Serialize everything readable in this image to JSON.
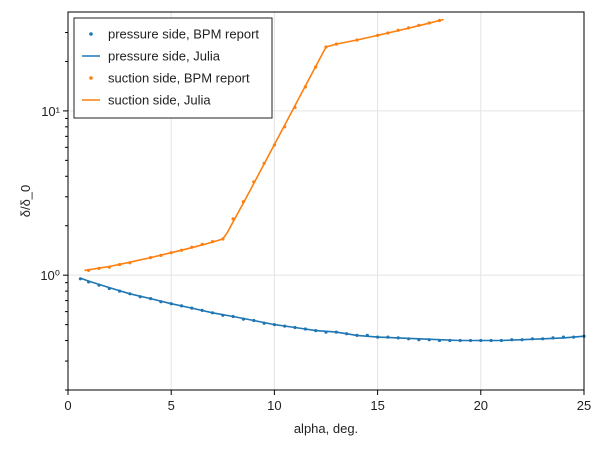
{
  "chart_data": {
    "type": "line",
    "title": "",
    "xlabel": "alpha, deg.",
    "ylabel": "δ/δ_0",
    "xlim": [
      0,
      25
    ],
    "ylim": [
      0.2,
      40
    ],
    "yscale": "log",
    "grid": true,
    "legend_position": "top-left",
    "x_ticks": [
      0,
      5,
      10,
      15,
      20,
      25
    ],
    "x_tick_labels": [
      "0",
      "5",
      "10",
      "15",
      "20",
      "25"
    ],
    "y_ticks": [
      1,
      10
    ],
    "y_tick_labels": [
      "10⁰",
      "10¹"
    ],
    "y_minor_ticks": [
      0.2,
      0.3,
      0.4,
      0.5,
      0.6,
      0.7,
      0.8,
      0.9,
      2,
      3,
      4,
      5,
      6,
      7,
      8,
      9,
      20,
      30
    ],
    "series": [
      {
        "name": "pressure side, BPM report",
        "kind": "scatter",
        "color": "#1f77b4",
        "x": [
          0.6,
          1.0,
          1.5,
          2.0,
          2.5,
          3.0,
          3.5,
          4.0,
          4.5,
          5.0,
          5.5,
          6.0,
          6.5,
          7.0,
          7.5,
          8.0,
          8.5,
          9.0,
          9.5,
          10.0,
          10.5,
          11.0,
          11.5,
          12.0,
          12.5,
          13.0,
          13.5,
          14.0,
          14.5,
          15.0,
          15.5,
          16.0,
          16.5,
          17.0,
          17.5,
          18.0,
          18.5,
          19.0,
          19.5,
          20.0,
          20.5,
          21.0,
          21.5,
          22.0,
          22.5,
          23.0,
          23.5,
          24.0,
          24.5,
          25.0
        ],
        "y": [
          0.95,
          0.91,
          0.87,
          0.83,
          0.8,
          0.77,
          0.74,
          0.72,
          0.69,
          0.67,
          0.65,
          0.63,
          0.61,
          0.59,
          0.57,
          0.56,
          0.54,
          0.53,
          0.51,
          0.5,
          0.49,
          0.48,
          0.47,
          0.46,
          0.45,
          0.45,
          0.44,
          0.43,
          0.43,
          0.42,
          0.42,
          0.415,
          0.41,
          0.405,
          0.405,
          0.4,
          0.4,
          0.4,
          0.4,
          0.4,
          0.4,
          0.4,
          0.405,
          0.405,
          0.41,
          0.41,
          0.415,
          0.42,
          0.42,
          0.425
        ]
      },
      {
        "name": "pressure side, Julia",
        "kind": "line",
        "color": "#1f77b4",
        "x": [
          0.6,
          1.0,
          2.0,
          3.0,
          4.0,
          5.0,
          6.0,
          7.0,
          8.0,
          9.0,
          10.0,
          11.0,
          12.0,
          13.0,
          14.0,
          15.0,
          16.0,
          17.0,
          18.0,
          19.0,
          20.0,
          21.0,
          22.0,
          23.0,
          24.0,
          25.0
        ],
        "y": [
          0.96,
          0.92,
          0.84,
          0.77,
          0.72,
          0.67,
          0.63,
          0.59,
          0.56,
          0.53,
          0.5,
          0.48,
          0.46,
          0.45,
          0.43,
          0.42,
          0.415,
          0.41,
          0.405,
          0.4,
          0.4,
          0.4,
          0.405,
          0.41,
          0.415,
          0.425
        ]
      },
      {
        "name": "suction side, BPM report",
        "kind": "scatter",
        "color": "#ff7f0e",
        "x": [
          1.0,
          1.5,
          2.0,
          2.5,
          3.0,
          4.0,
          4.5,
          5.0,
          5.5,
          6.0,
          6.5,
          7.0,
          7.5,
          8.0,
          8.5,
          9.0,
          9.5,
          10.0,
          10.5,
          11.0,
          11.5,
          12.0,
          12.5,
          13.0,
          14.0,
          15.0,
          15.5,
          16.0,
          16.5,
          17.0,
          17.5,
          18.0
        ],
        "y": [
          1.07,
          1.1,
          1.12,
          1.16,
          1.19,
          1.28,
          1.32,
          1.37,
          1.42,
          1.48,
          1.54,
          1.6,
          1.66,
          2.2,
          2.8,
          3.7,
          4.8,
          6.2,
          8.0,
          10.5,
          14.0,
          18.5,
          24.5,
          25.5,
          27.0,
          28.8,
          29.8,
          31.0,
          32.0,
          33.2,
          34.3,
          35.5
        ]
      },
      {
        "name": "suction side, Julia",
        "kind": "line",
        "color": "#ff7f0e",
        "x": [
          0.8,
          2.0,
          3.0,
          4.0,
          5.0,
          6.0,
          7.0,
          7.5,
          7.7,
          8.5,
          9.5,
          10.5,
          11.5,
          12.5,
          13.0,
          14.0,
          15.0,
          16.0,
          17.0,
          18.2
        ],
        "y": [
          1.07,
          1.13,
          1.2,
          1.28,
          1.37,
          1.47,
          1.59,
          1.66,
          1.8,
          2.75,
          4.75,
          8.2,
          14.2,
          24.5,
          25.5,
          27.0,
          28.8,
          30.8,
          33.0,
          36.0
        ]
      }
    ]
  }
}
